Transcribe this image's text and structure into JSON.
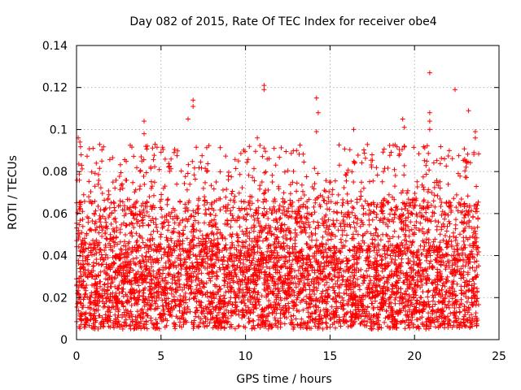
{
  "chart_data": {
    "type": "scatter",
    "title": "Day 082 of 2015, Rate Of TEC Index for receiver obe4",
    "xlabel": "GPS time / hours",
    "ylabel": "ROTI / TECUs",
    "xlim": [
      0,
      25
    ],
    "ylim": [
      0,
      0.14
    ],
    "xticks": [
      0,
      5,
      10,
      15,
      20,
      25
    ],
    "yticks": [
      0,
      0.02,
      0.04,
      0.06,
      0.08,
      0.1,
      0.12,
      0.14
    ],
    "xtick_labels": [
      "0",
      "5",
      "10",
      "15",
      "20",
      "25"
    ],
    "ytick_labels": [
      "0",
      "0.02",
      "0.04",
      "0.06",
      "0.08",
      "0.1",
      "0.12",
      "0.14"
    ],
    "grid": true,
    "marker": "+",
    "color": "#ff0000",
    "series": [
      {
        "name": "ROTI",
        "x_range": [
          0,
          23.8
        ],
        "typical_range": [
          0.005,
          0.045
        ],
        "notable_points": [
          {
            "x": 0.1,
            "y": 0.096
          },
          {
            "x": 0.2,
            "y": 0.094
          },
          {
            "x": 0.3,
            "y": 0.083
          },
          {
            "x": 1.5,
            "y": 0.085
          },
          {
            "x": 4.0,
            "y": 0.104
          },
          {
            "x": 4.0,
            "y": 0.098
          },
          {
            "x": 4.1,
            "y": 0.092
          },
          {
            "x": 4.9,
            "y": 0.081
          },
          {
            "x": 6.6,
            "y": 0.105
          },
          {
            "x": 6.9,
            "y": 0.114
          },
          {
            "x": 6.9,
            "y": 0.111
          },
          {
            "x": 10.7,
            "y": 0.096
          },
          {
            "x": 11.1,
            "y": 0.121
          },
          {
            "x": 11.1,
            "y": 0.119
          },
          {
            "x": 14.2,
            "y": 0.115
          },
          {
            "x": 14.3,
            "y": 0.108
          },
          {
            "x": 14.2,
            "y": 0.099
          },
          {
            "x": 16.4,
            "y": 0.1
          },
          {
            "x": 19.3,
            "y": 0.105
          },
          {
            "x": 19.4,
            "y": 0.101
          },
          {
            "x": 20.9,
            "y": 0.127
          },
          {
            "x": 20.9,
            "y": 0.108
          },
          {
            "x": 20.9,
            "y": 0.104
          },
          {
            "x": 20.9,
            "y": 0.1
          },
          {
            "x": 22.4,
            "y": 0.119
          },
          {
            "x": 23.2,
            "y": 0.109
          },
          {
            "x": 23.6,
            "y": 0.096
          },
          {
            "x": 23.6,
            "y": 0.099
          }
        ]
      }
    ]
  }
}
